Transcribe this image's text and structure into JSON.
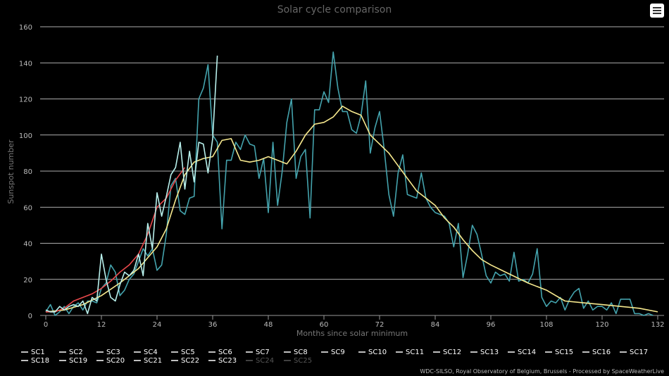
{
  "chart_data": {
    "type": "line",
    "title": "Solar cycle comparison",
    "xlabel": "Months since solar minimum",
    "ylabel": "Sunspot number",
    "xlim": [
      0,
      132
    ],
    "ylim": [
      0,
      160
    ],
    "xticks": [
      0,
      12,
      24,
      36,
      48,
      60,
      72,
      84,
      96,
      108,
      120,
      132
    ],
    "yticks": [
      0,
      20,
      40,
      60,
      80,
      100,
      120,
      140,
      160
    ],
    "grid": true,
    "legend_position": "bottom-left",
    "legend": [
      {
        "name": "SC1",
        "color": "#ffffff",
        "visible": true
      },
      {
        "name": "SC2",
        "color": "#ffffff",
        "visible": true
      },
      {
        "name": "SC3",
        "color": "#ffffff",
        "visible": true
      },
      {
        "name": "SC4",
        "color": "#ffffff",
        "visible": true
      },
      {
        "name": "SC5",
        "color": "#ffffff",
        "visible": true
      },
      {
        "name": "SC6",
        "color": "#ffffff",
        "visible": true
      },
      {
        "name": "SC7",
        "color": "#ffffff",
        "visible": true
      },
      {
        "name": "SC8",
        "color": "#ffffff",
        "visible": true
      },
      {
        "name": "SC9",
        "color": "#ffffff",
        "visible": true
      },
      {
        "name": "SC10",
        "color": "#ffffff",
        "visible": true
      },
      {
        "name": "SC11",
        "color": "#ffffff",
        "visible": true
      },
      {
        "name": "SC12",
        "color": "#ffffff",
        "visible": true
      },
      {
        "name": "SC13",
        "color": "#ffffff",
        "visible": true
      },
      {
        "name": "SC14",
        "color": "#ffffff",
        "visible": true
      },
      {
        "name": "SC15",
        "color": "#ffffff",
        "visible": true
      },
      {
        "name": "SC16",
        "color": "#ffffff",
        "visible": true
      },
      {
        "name": "SC17",
        "color": "#ffffff",
        "visible": true
      },
      {
        "name": "SC18",
        "color": "#ffffff",
        "visible": true
      },
      {
        "name": "SC19",
        "color": "#ffffff",
        "visible": true
      },
      {
        "name": "SC20",
        "color": "#ffffff",
        "visible": true
      },
      {
        "name": "SC21",
        "color": "#ffffff",
        "visible": true
      },
      {
        "name": "SC22",
        "color": "#ffffff",
        "visible": true
      },
      {
        "name": "SC23",
        "color": "#ffffff",
        "visible": true
      },
      {
        "name": "SC24",
        "color": "#f7e98e",
        "visible": false
      },
      {
        "name": "SC25",
        "color": "#e8484b",
        "visible": false
      }
    ],
    "series": [
      {
        "color": "#44a3ad",
        "x": [
          0,
          1,
          2,
          3,
          4,
          5,
          6,
          7,
          8,
          9,
          10,
          11,
          12,
          13,
          14,
          15,
          16,
          17,
          18,
          19,
          20,
          21,
          22,
          23,
          24,
          25,
          26,
          27,
          28,
          29,
          30,
          31,
          32,
          33,
          34,
          35,
          36,
          37,
          38,
          39,
          40,
          41,
          42,
          43,
          44,
          45,
          46,
          47,
          48,
          49,
          50,
          51,
          52,
          53,
          54,
          55,
          56,
          57,
          58,
          59,
          60,
          61,
          62,
          63,
          64,
          65,
          66,
          67,
          68,
          69,
          70,
          71,
          72,
          73,
          74,
          75,
          76,
          77,
          78,
          79,
          80,
          81,
          82,
          83,
          84,
          85,
          86,
          87,
          88,
          89,
          90,
          91,
          92,
          93,
          94,
          95,
          96,
          97,
          98,
          99,
          100,
          101,
          102,
          103,
          104,
          105,
          106,
          107,
          108,
          109,
          110,
          111,
          112,
          113,
          114,
          115,
          116,
          117,
          118,
          119,
          120,
          121,
          122,
          123,
          124,
          125,
          126,
          127,
          128,
          129,
          130,
          131
        ],
        "values": [
          2,
          6,
          0,
          2,
          5,
          1,
          5,
          7,
          3,
          8,
          8,
          7,
          15,
          18,
          28,
          24,
          11,
          14,
          20,
          23,
          30,
          37,
          33,
          37,
          25,
          28,
          45,
          72,
          76,
          58,
          56,
          65,
          66,
          120,
          126,
          139,
          100,
          96,
          48,
          86,
          86,
          96,
          92,
          100,
          95,
          94,
          76,
          87,
          57,
          96,
          61,
          80,
          107,
          120,
          76,
          88,
          92,
          54,
          114,
          114,
          124,
          118,
          146,
          126,
          113,
          113,
          103,
          101,
          111,
          130,
          90,
          104,
          113,
          92,
          67,
          55,
          79,
          89,
          67,
          66,
          65,
          79,
          65,
          60,
          57,
          56,
          55,
          51,
          38,
          51,
          21,
          34,
          50,
          45,
          34,
          22,
          18,
          24,
          22,
          23,
          19,
          35,
          19,
          20,
          18,
          23,
          37,
          10,
          5,
          8,
          7,
          10,
          3,
          9,
          13,
          15,
          4,
          8,
          3,
          5,
          5,
          3,
          7,
          1,
          9,
          9,
          9,
          1,
          1,
          0,
          1,
          0
        ]
      },
      {
        "color": "#f7e98e",
        "x": [
          0,
          4,
          8,
          12,
          16,
          20,
          24,
          26,
          28,
          30,
          32,
          34,
          36,
          38,
          40,
          42,
          44,
          46,
          48,
          50,
          52,
          54,
          56,
          58,
          60,
          62,
          64,
          66,
          68,
          70,
          72,
          74,
          76,
          78,
          80,
          82,
          84,
          86,
          88,
          90,
          92,
          94,
          96,
          100,
          104,
          108,
          112,
          116,
          120,
          124,
          128,
          132
        ],
        "values": [
          2,
          3,
          6,
          11,
          18,
          26,
          38,
          48,
          64,
          78,
          85,
          87,
          88,
          97,
          98,
          86,
          85,
          86,
          88,
          86,
          84,
          91,
          100,
          106,
          107,
          110,
          116,
          113,
          111,
          100,
          95,
          90,
          83,
          76,
          69,
          65,
          61,
          54,
          49,
          42,
          36,
          31,
          28,
          23,
          18,
          14,
          8,
          7,
          6,
          5,
          4,
          2
        ]
      },
      {
        "color": "#e8484b",
        "x": [
          0,
          2,
          4,
          6,
          8,
          10,
          12,
          14,
          16,
          18,
          20,
          22,
          24,
          26,
          28,
          30
        ],
        "values": [
          2,
          2,
          4,
          8,
          10,
          12,
          15,
          19,
          24,
          28,
          34,
          45,
          60,
          65,
          75,
          82
        ]
      },
      {
        "color": "#b8f0ec",
        "x": [
          0,
          1,
          2,
          3,
          4,
          5,
          6,
          7,
          8,
          9,
          10,
          11,
          12,
          13,
          14,
          15,
          16,
          17,
          18,
          19,
          20,
          21,
          22,
          23,
          24,
          25,
          26,
          27,
          28,
          29,
          30,
          31,
          32,
          33,
          34,
          35,
          36,
          37
        ],
        "values": [
          3,
          2,
          2,
          5,
          3,
          5,
          6,
          5,
          8,
          1,
          10,
          8,
          34,
          20,
          10,
          8,
          17,
          24,
          22,
          25,
          34,
          22,
          51,
          37,
          68,
          55,
          66,
          78,
          82,
          96,
          70,
          91,
          74,
          96,
          95,
          79,
          98,
          144
        ]
      }
    ]
  },
  "credits": "WDC-SILSO, Royal Observatory of Belgium, Brussels - Processed by SpaceWeatherLive",
  "ui": {
    "menu_icon": "hamburger-icon"
  }
}
